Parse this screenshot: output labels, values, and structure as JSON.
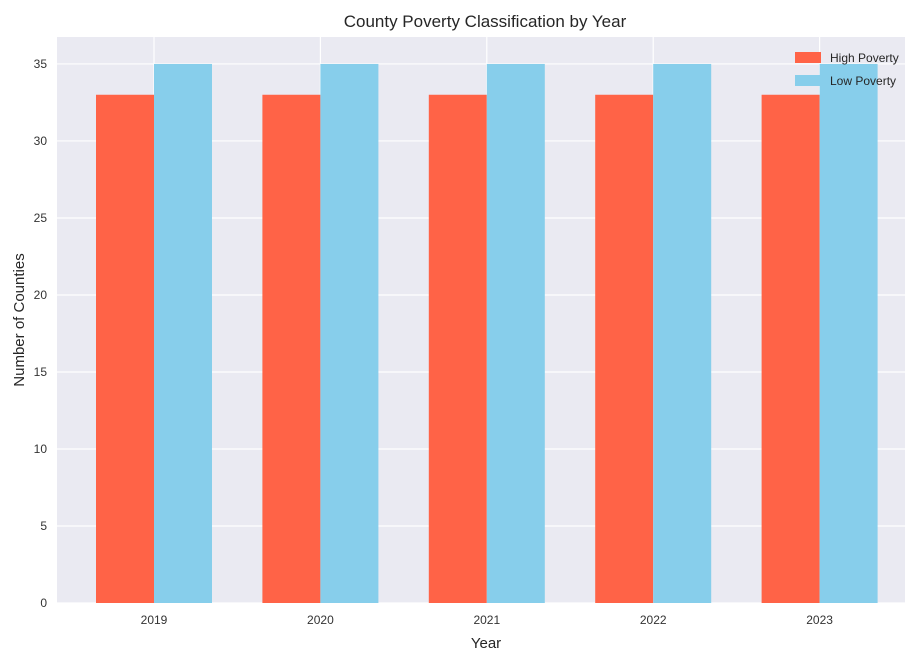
{
  "chart_data": {
    "type": "bar",
    "title": "County Poverty Classification by Year",
    "xlabel": "Year",
    "ylabel": "Number of Counties",
    "categories": [
      "2019",
      "2020",
      "2021",
      "2022",
      "2023"
    ],
    "series": [
      {
        "name": "High Poverty",
        "color": "#ff6347",
        "values": [
          33,
          33,
          33,
          33,
          33
        ]
      },
      {
        "name": "Low Poverty",
        "color": "#87ceeb",
        "values": [
          35,
          35,
          35,
          35,
          35
        ]
      }
    ],
    "ylim": [
      0,
      36.75
    ],
    "yticks": [
      0,
      5,
      10,
      15,
      20,
      25,
      30,
      35
    ],
    "grid": true,
    "legend_position": "top-right",
    "background_color": "#eaeaf2",
    "grid_color": "#ffffff"
  }
}
